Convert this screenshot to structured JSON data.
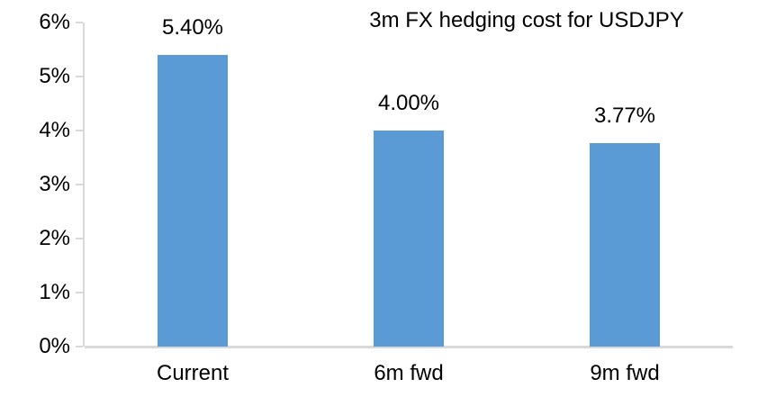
{
  "chart_data": {
    "type": "bar",
    "title": "3m FX hedging cost for USDJPY",
    "categories": [
      "Current",
      "6m fwd",
      "9m fwd"
    ],
    "values": [
      5.4,
      4.0,
      3.77
    ],
    "data_labels": [
      "5.40%",
      "4.00%",
      "3.77%"
    ],
    "y_ticks": [
      "0%",
      "1%",
      "2%",
      "3%",
      "4%",
      "5%",
      "6%"
    ],
    "y_tick_values": [
      0,
      1,
      2,
      3,
      4,
      5,
      6
    ],
    "ylim": [
      0,
      6
    ],
    "xlabel": "",
    "ylabel": "",
    "grid": "off",
    "legend": "none",
    "bar_color": "#5B9BD5",
    "axis_color": "#D9D9D9",
    "text_color": "#000000"
  }
}
